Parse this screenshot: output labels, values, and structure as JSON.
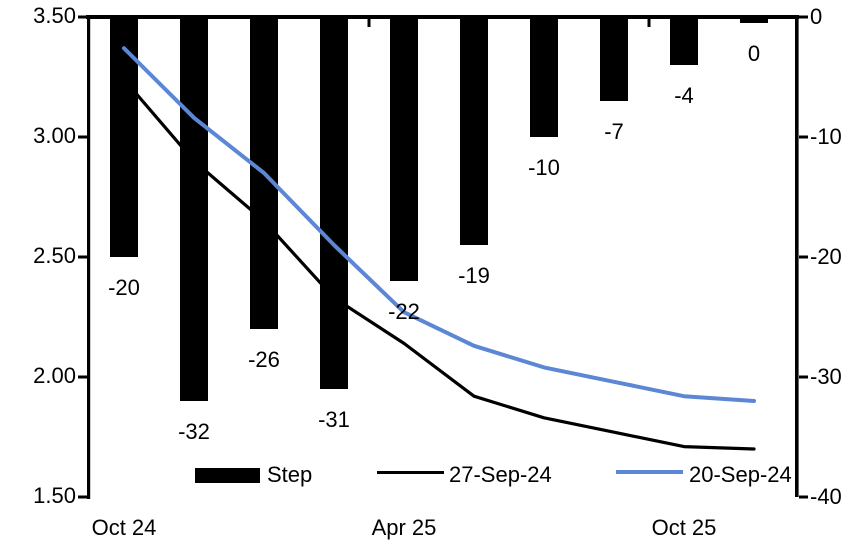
{
  "chart_data": {
    "type": "combo-bar-line",
    "title": "",
    "n_categories": 10,
    "x_axis": {
      "tick_labels": [
        {
          "index": 0,
          "label": "Oct 24"
        },
        {
          "index": 4,
          "label": "Apr 25"
        },
        {
          "index": 8,
          "label": "Oct 25"
        }
      ],
      "group_tick_boundaries": [
        4,
        8
      ]
    },
    "left_axis": {
      "min": 1.5,
      "max": 3.5,
      "tick_labels": [
        "3.50",
        "3.00",
        "2.50",
        "2.00",
        "1.50"
      ],
      "tick_values": [
        3.5,
        3.0,
        2.5,
        2.0,
        1.5
      ]
    },
    "right_axis": {
      "min": -40,
      "max": 0,
      "tick_labels": [
        "0",
        "-10",
        "-20",
        "-30",
        "-40"
      ],
      "tick_values": [
        0,
        -10,
        -20,
        -30,
        -40
      ]
    },
    "series": [
      {
        "name": "Step",
        "type": "bar",
        "axis": "right",
        "color": "#000000",
        "values": [
          -20,
          -32,
          -26,
          -31,
          -22,
          -19,
          -10,
          -7,
          -4,
          0
        ],
        "data_labels": [
          "-20",
          "-32",
          "-26",
          "-31",
          "-22",
          "-19",
          "-10",
          "-7",
          "-4",
          "0"
        ]
      },
      {
        "name": "27-Sep-24",
        "type": "line",
        "axis": "left",
        "color": "#000000",
        "stroke_width": 3.2,
        "values": [
          3.24,
          2.9,
          2.65,
          2.33,
          2.14,
          1.92,
          1.83,
          1.77,
          1.71,
          1.7
        ]
      },
      {
        "name": "20-Sep-24",
        "type": "line",
        "axis": "left",
        "color": "#5B87D5",
        "stroke_width": 4,
        "values": [
          3.37,
          3.08,
          2.85,
          2.55,
          2.27,
          2.13,
          2.04,
          1.98,
          1.92,
          1.9
        ]
      }
    ],
    "legend": {
      "position": "bottom-inside",
      "items": [
        {
          "label": "Step",
          "swatch": "bar",
          "color": "#000000"
        },
        {
          "label": "27-Sep-24",
          "swatch": "line",
          "color": "#000000"
        },
        {
          "label": "20-Sep-24",
          "swatch": "line",
          "color": "#5B87D5"
        }
      ]
    }
  }
}
